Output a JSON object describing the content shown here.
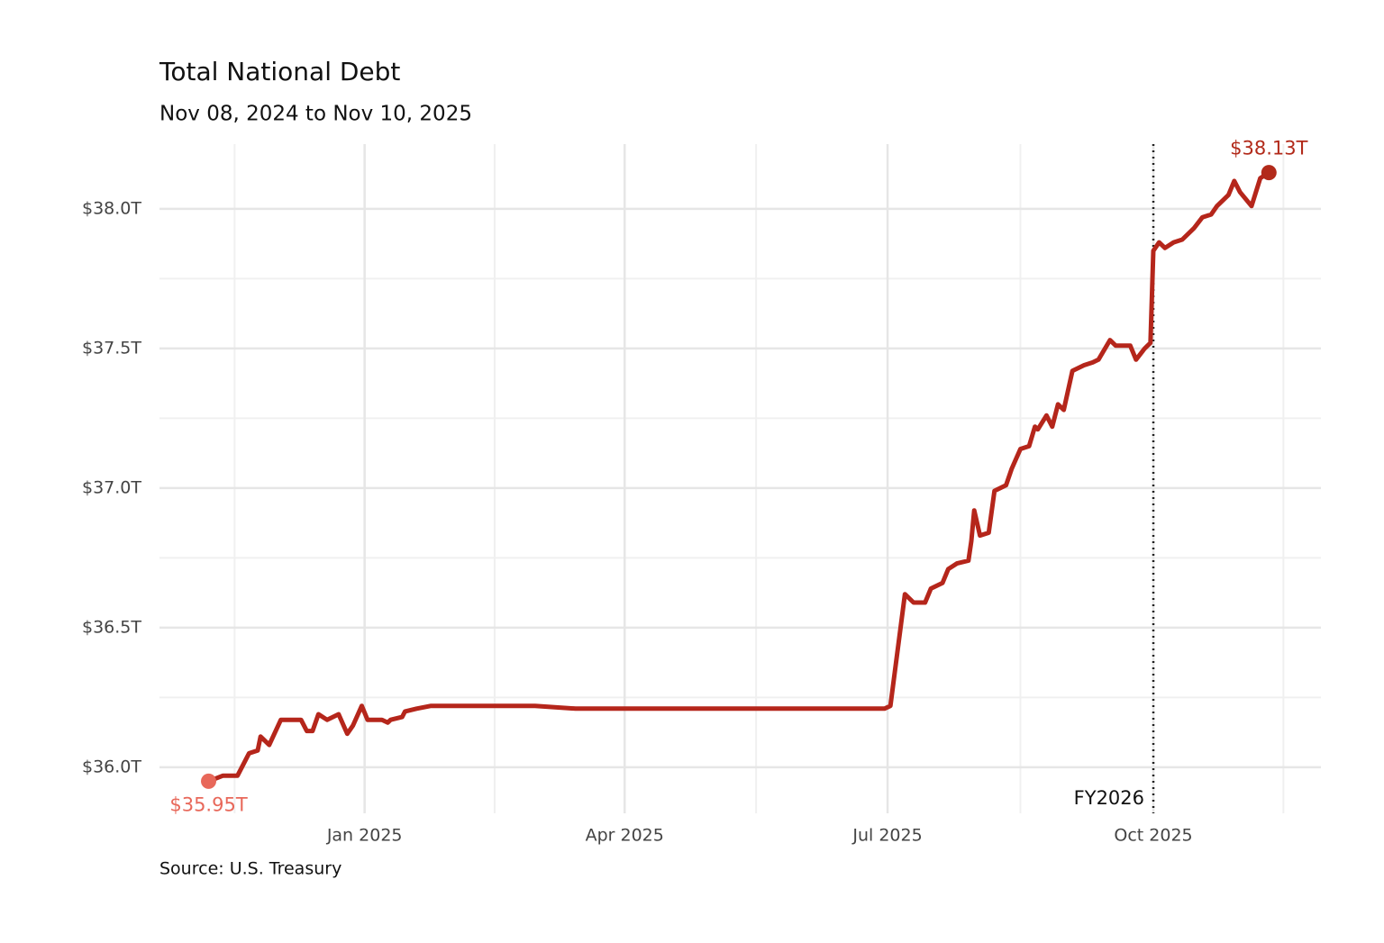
{
  "chart_data": {
    "type": "line",
    "title": "Total National Debt",
    "subtitle": "Nov 08, 2024 to Nov 10, 2025",
    "source": "Source: U.S. Treasury",
    "x": [
      "2024-11-08",
      "2024-11-13",
      "2024-11-18",
      "2024-11-20",
      "2024-11-22",
      "2024-11-25",
      "2024-11-26",
      "2024-11-29",
      "2024-12-03",
      "2024-12-07",
      "2024-12-10",
      "2024-12-12",
      "2024-12-14",
      "2024-12-16",
      "2024-12-19",
      "2024-12-23",
      "2024-12-26",
      "2024-12-28",
      "2024-12-31",
      "2025-01-02",
      "2025-01-07",
      "2025-01-09",
      "2025-01-10",
      "2025-01-14",
      "2025-01-15",
      "2025-01-19",
      "2025-01-24",
      "2025-02-01",
      "2025-02-15",
      "2025-03-01",
      "2025-03-15",
      "2025-04-01",
      "2025-04-15",
      "2025-05-01",
      "2025-05-15",
      "2025-06-01",
      "2025-06-15",
      "2025-06-30",
      "2025-07-02",
      "2025-07-07",
      "2025-07-10",
      "2025-07-14",
      "2025-07-16",
      "2025-07-20",
      "2025-07-22",
      "2025-07-25",
      "2025-07-29",
      "2025-07-30",
      "2025-07-31",
      "2025-08-02",
      "2025-08-05",
      "2025-08-07",
      "2025-08-11",
      "2025-08-13",
      "2025-08-16",
      "2025-08-19",
      "2025-08-21",
      "2025-08-22",
      "2025-08-25",
      "2025-08-27",
      "2025-08-29",
      "2025-08-31",
      "2025-09-03",
      "2025-09-07",
      "2025-09-10",
      "2025-09-12",
      "2025-09-16",
      "2025-09-18",
      "2025-09-23",
      "2025-09-25",
      "2025-09-28",
      "2025-09-30",
      "2025-10-01",
      "2025-10-03",
      "2025-10-05",
      "2025-10-08",
      "2025-10-11",
      "2025-10-15",
      "2025-10-18",
      "2025-10-21",
      "2025-10-23",
      "2025-10-27",
      "2025-10-29",
      "2025-10-31",
      "2025-11-04",
      "2025-11-07",
      "2025-11-10"
    ],
    "series": [
      {
        "name": "Total National Debt",
        "color": "#b5261b",
        "values": [
          35.95,
          35.97,
          35.97,
          36.01,
          36.05,
          36.06,
          36.11,
          36.08,
          36.17,
          36.17,
          36.17,
          36.13,
          36.13,
          36.19,
          36.17,
          36.19,
          36.12,
          36.15,
          36.22,
          36.17,
          36.17,
          36.16,
          36.17,
          36.18,
          36.2,
          36.21,
          36.22,
          36.22,
          36.22,
          36.22,
          36.21,
          36.21,
          36.21,
          36.21,
          36.21,
          36.21,
          36.21,
          36.21,
          36.22,
          36.62,
          36.59,
          36.59,
          36.64,
          36.66,
          36.71,
          36.73,
          36.74,
          36.81,
          36.92,
          36.83,
          36.84,
          36.99,
          37.01,
          37.07,
          37.14,
          37.15,
          37.22,
          37.21,
          37.26,
          37.22,
          37.3,
          37.28,
          37.42,
          37.44,
          37.45,
          37.46,
          37.53,
          37.51,
          37.51,
          37.46,
          37.5,
          37.52,
          37.85,
          37.88,
          37.86,
          37.88,
          37.89,
          37.93,
          37.97,
          37.98,
          38.01,
          38.05,
          38.1,
          38.06,
          38.01,
          38.11,
          38.13
        ],
        "value_labels": [
          "$35.95T",
          null,
          null,
          null,
          null,
          null,
          null,
          null,
          null,
          null,
          null,
          null,
          null,
          null,
          null,
          null,
          null,
          null,
          null,
          null,
          null,
          null,
          null,
          null,
          null,
          null,
          null,
          null,
          null,
          null,
          null,
          null,
          null,
          null,
          null,
          null,
          null,
          null,
          null,
          null,
          null,
          null,
          null,
          null,
          null,
          null,
          null,
          null,
          null,
          null,
          null,
          null,
          null,
          null,
          null,
          null,
          null,
          null,
          null,
          null,
          null,
          null,
          null,
          null,
          null,
          null,
          null,
          null,
          null,
          null,
          null,
          null,
          null,
          null,
          null,
          null,
          null,
          null,
          null,
          null,
          null,
          null,
          null,
          null,
          null,
          null,
          "$38.13T"
        ]
      }
    ],
    "start_marker_color": "#e8685a",
    "end_marker_color": "#b22a1a",
    "xlim": [
      "2024-10-22",
      "2025-11-28"
    ],
    "xticks": [
      {
        "value": "2025-01-01",
        "label": "Jan 2025"
      },
      {
        "value": "2025-04-01",
        "label": "Apr 2025"
      },
      {
        "value": "2025-07-01",
        "label": "Jul 2025"
      },
      {
        "value": "2025-10-01",
        "label": "Oct 2025"
      }
    ],
    "ylim": [
      35.835,
      38.232
    ],
    "yticks": [
      {
        "value": 36,
        "label": "$36.0T"
      },
      {
        "value": 36.5,
        "label": "$36.5T"
      },
      {
        "value": 37,
        "label": "$37.0T"
      },
      {
        "value": 37.5,
        "label": "$37.5T"
      },
      {
        "value": 38,
        "label": "$38.0T"
      }
    ],
    "vline": {
      "x": "2025-10-01",
      "label": "FY2026"
    },
    "grid": true
  }
}
